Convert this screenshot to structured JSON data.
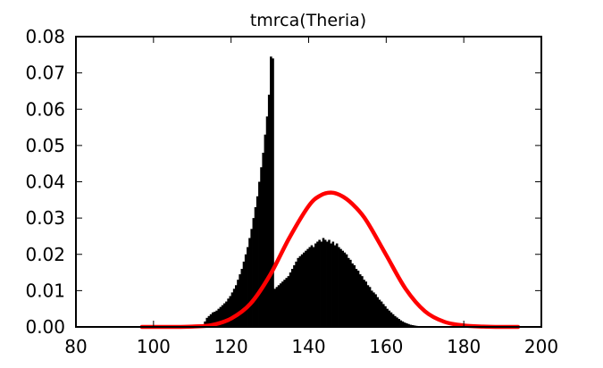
{
  "chart_data": {
    "type": "bar",
    "title": "tmrca(Theria)",
    "xlabel": "",
    "ylabel": "",
    "xlim": [
      80,
      200
    ],
    "ylim": [
      0,
      0.08
    ],
    "x_ticks": [
      80,
      100,
      120,
      140,
      160,
      180,
      200
    ],
    "y_ticks": [
      0.0,
      0.01,
      0.02,
      0.03,
      0.04,
      0.05,
      0.06,
      0.07,
      0.08
    ],
    "x_tick_labels": [
      "80",
      "100",
      "120",
      "140",
      "160",
      "180",
      "200"
    ],
    "y_tick_labels": [
      "0.00",
      "0.01",
      "0.02",
      "0.03",
      "0.04",
      "0.05",
      "0.06",
      "0.07",
      "0.08"
    ],
    "grid": false,
    "legend": "none",
    "series": [
      {
        "type": "histogram",
        "color": "#000000",
        "bin_width": 0.5,
        "bins": [
          {
            "x": 113.0,
            "y": 0.0015
          },
          {
            "x": 113.5,
            "y": 0.0025
          },
          {
            "x": 114.0,
            "y": 0.003
          },
          {
            "x": 114.5,
            "y": 0.0035
          },
          {
            "x": 115.0,
            "y": 0.004
          },
          {
            "x": 115.5,
            "y": 0.0042
          },
          {
            "x": 116.0,
            "y": 0.0045
          },
          {
            "x": 116.5,
            "y": 0.005
          },
          {
            "x": 117.0,
            "y": 0.0055
          },
          {
            "x": 117.5,
            "y": 0.006
          },
          {
            "x": 118.0,
            "y": 0.0065
          },
          {
            "x": 118.5,
            "y": 0.007
          },
          {
            "x": 119.0,
            "y": 0.0078
          },
          {
            "x": 119.5,
            "y": 0.0085
          },
          {
            "x": 120.0,
            "y": 0.0095
          },
          {
            "x": 120.5,
            "y": 0.0105
          },
          {
            "x": 121.0,
            "y": 0.0115
          },
          {
            "x": 121.5,
            "y": 0.013
          },
          {
            "x": 122.0,
            "y": 0.0145
          },
          {
            "x": 122.5,
            "y": 0.016
          },
          {
            "x": 123.0,
            "y": 0.018
          },
          {
            "x": 123.5,
            "y": 0.02
          },
          {
            "x": 124.0,
            "y": 0.022
          },
          {
            "x": 124.5,
            "y": 0.0245
          },
          {
            "x": 125.0,
            "y": 0.027
          },
          {
            "x": 125.5,
            "y": 0.03
          },
          {
            "x": 126.0,
            "y": 0.033
          },
          {
            "x": 126.5,
            "y": 0.036
          },
          {
            "x": 127.0,
            "y": 0.04
          },
          {
            "x": 127.5,
            "y": 0.044
          },
          {
            "x": 128.0,
            "y": 0.048
          },
          {
            "x": 128.5,
            "y": 0.053
          },
          {
            "x": 129.0,
            "y": 0.058
          },
          {
            "x": 129.5,
            "y": 0.064
          },
          {
            "x": 130.0,
            "y": 0.0745
          },
          {
            "x": 130.5,
            "y": 0.074
          },
          {
            "x": 131.0,
            "y": 0.0105
          },
          {
            "x": 131.5,
            "y": 0.011
          },
          {
            "x": 132.0,
            "y": 0.0115
          },
          {
            "x": 132.5,
            "y": 0.012
          },
          {
            "x": 133.0,
            "y": 0.0125
          },
          {
            "x": 133.5,
            "y": 0.013
          },
          {
            "x": 134.0,
            "y": 0.0135
          },
          {
            "x": 134.5,
            "y": 0.014
          },
          {
            "x": 135.0,
            "y": 0.015
          },
          {
            "x": 135.5,
            "y": 0.016
          },
          {
            "x": 136.0,
            "y": 0.017
          },
          {
            "x": 136.5,
            "y": 0.018
          },
          {
            "x": 137.0,
            "y": 0.019
          },
          {
            "x": 137.5,
            "y": 0.0195
          },
          {
            "x": 138.0,
            "y": 0.02
          },
          {
            "x": 138.5,
            "y": 0.0205
          },
          {
            "x": 139.0,
            "y": 0.021
          },
          {
            "x": 139.5,
            "y": 0.0215
          },
          {
            "x": 140.0,
            "y": 0.022
          },
          {
            "x": 140.5,
            "y": 0.0225
          },
          {
            "x": 141.0,
            "y": 0.022
          },
          {
            "x": 141.5,
            "y": 0.023
          },
          {
            "x": 142.0,
            "y": 0.0235
          },
          {
            "x": 142.5,
            "y": 0.024
          },
          {
            "x": 143.0,
            "y": 0.0235
          },
          {
            "x": 143.5,
            "y": 0.0245
          },
          {
            "x": 144.0,
            "y": 0.024
          },
          {
            "x": 144.5,
            "y": 0.0235
          },
          {
            "x": 145.0,
            "y": 0.024
          },
          {
            "x": 145.5,
            "y": 0.023
          },
          {
            "x": 146.0,
            "y": 0.0235
          },
          {
            "x": 146.5,
            "y": 0.0225
          },
          {
            "x": 147.0,
            "y": 0.023
          },
          {
            "x": 147.5,
            "y": 0.022
          },
          {
            "x": 148.0,
            "y": 0.0215
          },
          {
            "x": 148.5,
            "y": 0.021
          },
          {
            "x": 149.0,
            "y": 0.0205
          },
          {
            "x": 149.5,
            "y": 0.02
          },
          {
            "x": 150.0,
            "y": 0.019
          },
          {
            "x": 150.5,
            "y": 0.0185
          },
          {
            "x": 151.0,
            "y": 0.0175
          },
          {
            "x": 151.5,
            "y": 0.017
          },
          {
            "x": 152.0,
            "y": 0.016
          },
          {
            "x": 152.5,
            "y": 0.0155
          },
          {
            "x": 153.0,
            "y": 0.0145
          },
          {
            "x": 153.5,
            "y": 0.014
          },
          {
            "x": 154.0,
            "y": 0.013
          },
          {
            "x": 154.5,
            "y": 0.0125
          },
          {
            "x": 155.0,
            "y": 0.0115
          },
          {
            "x": 155.5,
            "y": 0.011
          },
          {
            "x": 156.0,
            "y": 0.01
          },
          {
            "x": 156.5,
            "y": 0.0095
          },
          {
            "x": 157.0,
            "y": 0.009
          },
          {
            "x": 157.5,
            "y": 0.0082
          },
          {
            "x": 158.0,
            "y": 0.0075
          },
          {
            "x": 158.5,
            "y": 0.007
          },
          {
            "x": 159.0,
            "y": 0.0063
          },
          {
            "x": 159.5,
            "y": 0.0057
          },
          {
            "x": 160.0,
            "y": 0.005
          },
          {
            "x": 160.5,
            "y": 0.0045
          },
          {
            "x": 161.0,
            "y": 0.004
          },
          {
            "x": 161.5,
            "y": 0.0035
          },
          {
            "x": 162.0,
            "y": 0.003
          },
          {
            "x": 162.5,
            "y": 0.0026
          },
          {
            "x": 163.0,
            "y": 0.0022
          },
          {
            "x": 163.5,
            "y": 0.0018
          },
          {
            "x": 164.0,
            "y": 0.0015
          },
          {
            "x": 164.5,
            "y": 0.0012
          },
          {
            "x": 165.0,
            "y": 0.001
          },
          {
            "x": 165.5,
            "y": 0.0008
          },
          {
            "x": 166.0,
            "y": 0.0006
          },
          {
            "x": 166.5,
            "y": 0.0005
          },
          {
            "x": 167.0,
            "y": 0.0004
          },
          {
            "x": 167.5,
            "y": 0.0003
          },
          {
            "x": 168.0,
            "y": 0.0002
          },
          {
            "x": 168.5,
            "y": 0.0002
          },
          {
            "x": 169.0,
            "y": 0.0001
          },
          {
            "x": 169.5,
            "y": 0.0001
          },
          {
            "x": 170.0,
            "y": 0.0001
          }
        ]
      },
      {
        "type": "line",
        "color": "#ff0000",
        "x": [
          97,
          105,
          110,
          115,
          120,
          125,
          130,
          135,
          140,
          143,
          146,
          149,
          152,
          155,
          160,
          165,
          170,
          175,
          180,
          185,
          190,
          194
        ],
        "y": [
          0.0,
          0.0,
          0.0001,
          0.0005,
          0.0023,
          0.0064,
          0.0142,
          0.0245,
          0.0333,
          0.0362,
          0.037,
          0.0358,
          0.0331,
          0.0291,
          0.0198,
          0.0105,
          0.0043,
          0.0014,
          0.0004,
          0.0001,
          0.0,
          0.0
        ]
      }
    ]
  }
}
